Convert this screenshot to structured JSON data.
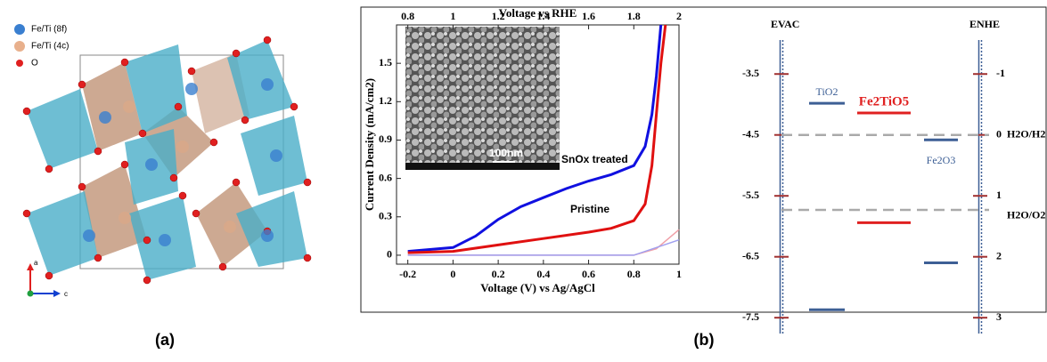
{
  "panel_a": {
    "legend": [
      "Fe/Ti (8f)",
      "Fe/Ti (4c)",
      "O"
    ],
    "axes": [
      "a",
      "c"
    ],
    "label": "(a)"
  },
  "panel_b": {
    "label": "(b)"
  },
  "chart_data": [
    {
      "type": "line",
      "x2label": "Voltage vs RHE",
      "xlabel": "Voltage (V) vs Ag/AgCl",
      "ylabel": "Current Density (mA/cm2)",
      "xlim": [
        -0.25,
        1.0
      ],
      "xticks": [
        -0.2,
        0.0,
        0.2,
        0.4,
        0.6,
        0.8,
        1.0
      ],
      "x2lim": [
        0.75,
        2.0
      ],
      "x2ticks": [
        0.8,
        1.0,
        1.2,
        1.4,
        1.6,
        1.8,
        2.0
      ],
      "ylim": [
        -0.07,
        1.8
      ],
      "yticks": [
        0.0,
        0.3,
        0.6,
        0.9,
        1.2,
        1.5
      ],
      "inset_annotation": "100nm",
      "series": [
        {
          "name": "SnOx treated",
          "color": "#1010e0",
          "x": [
            -0.2,
            0.0,
            0.1,
            0.2,
            0.3,
            0.4,
            0.5,
            0.6,
            0.7,
            0.8,
            0.85,
            0.88,
            0.9,
            0.92
          ],
          "values": [
            0.03,
            0.06,
            0.15,
            0.28,
            0.38,
            0.45,
            0.52,
            0.58,
            0.63,
            0.7,
            0.85,
            1.1,
            1.4,
            1.8
          ]
        },
        {
          "name": "Pristine",
          "color": "#e01010",
          "x": [
            -0.2,
            0.0,
            0.2,
            0.4,
            0.6,
            0.7,
            0.8,
            0.85,
            0.88,
            0.9,
            0.92,
            0.94
          ],
          "values": [
            0.02,
            0.03,
            0.08,
            0.13,
            0.18,
            0.21,
            0.27,
            0.4,
            0.7,
            1.1,
            1.5,
            1.8
          ]
        },
        {
          "color": "#f0a0a8",
          "x": [
            -0.2,
            0.8,
            0.9,
            1.0
          ],
          "values": [
            0.0,
            0.0,
            0.05,
            0.2
          ]
        },
        {
          "color": "#a0a0f0",
          "x": [
            -0.2,
            0.8,
            1.0
          ],
          "values": [
            0.0,
            0.0,
            0.12
          ]
        }
      ]
    },
    {
      "type": "energy-levels",
      "ylabel": "EVAC",
      "y2label": "ENHE",
      "ylim": [
        -7.76,
        -2.65
      ],
      "yticks": [
        -3.5,
        -4.5,
        -5.5,
        -6.5,
        -7.5
      ],
      "y2lim": [
        -1.85,
        3.26
      ],
      "y2ticks": [
        -1,
        0,
        1,
        2,
        3
      ],
      "references": [
        {
          "name": "H2O/H2",
          "value": 0
        },
        {
          "name": "H2O/O2",
          "value": 1.23
        }
      ],
      "series": [
        {
          "name": "TiO2",
          "color": "#3d5f95",
          "values": [
            -3.98,
            -7.37
          ]
        },
        {
          "name": "Fe2TiO5",
          "color": "#e02020",
          "values": [
            -4.14,
            -5.94
          ]
        },
        {
          "name": "Fe2O3",
          "color": "#3d5f95",
          "values": [
            -4.58,
            -6.6
          ]
        }
      ]
    }
  ]
}
